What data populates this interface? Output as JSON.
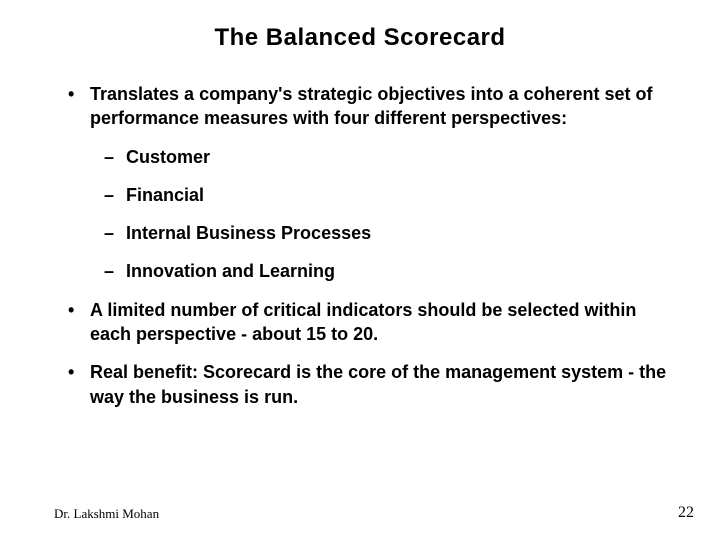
{
  "title": "The  Balanced  Scorecard",
  "bullets": [
    {
      "text": "Translates a company's strategic objectives into a coherent set of performance measures with four different perspectives:",
      "subitems": [
        "Customer",
        "Financial",
        "Internal Business Processes",
        "Innovation and Learning"
      ]
    },
    {
      "text": "A limited number of critical indicators should be selected within each perspective - about 15 to 20.",
      "subitems": []
    },
    {
      "text": "Real benefit: Scorecard is the core of the management system - the way the business is run.",
      "subitems": []
    }
  ],
  "footer": {
    "author": "Dr. Lakshmi Mohan",
    "page_number": "22"
  },
  "style": {
    "background_color": "#ffffff",
    "text_color": "#000000",
    "title_fontsize": 24,
    "body_fontsize": 18,
    "footer_fontsize": 13,
    "font_family_body": "Arial",
    "font_family_footer": "Times New Roman"
  }
}
